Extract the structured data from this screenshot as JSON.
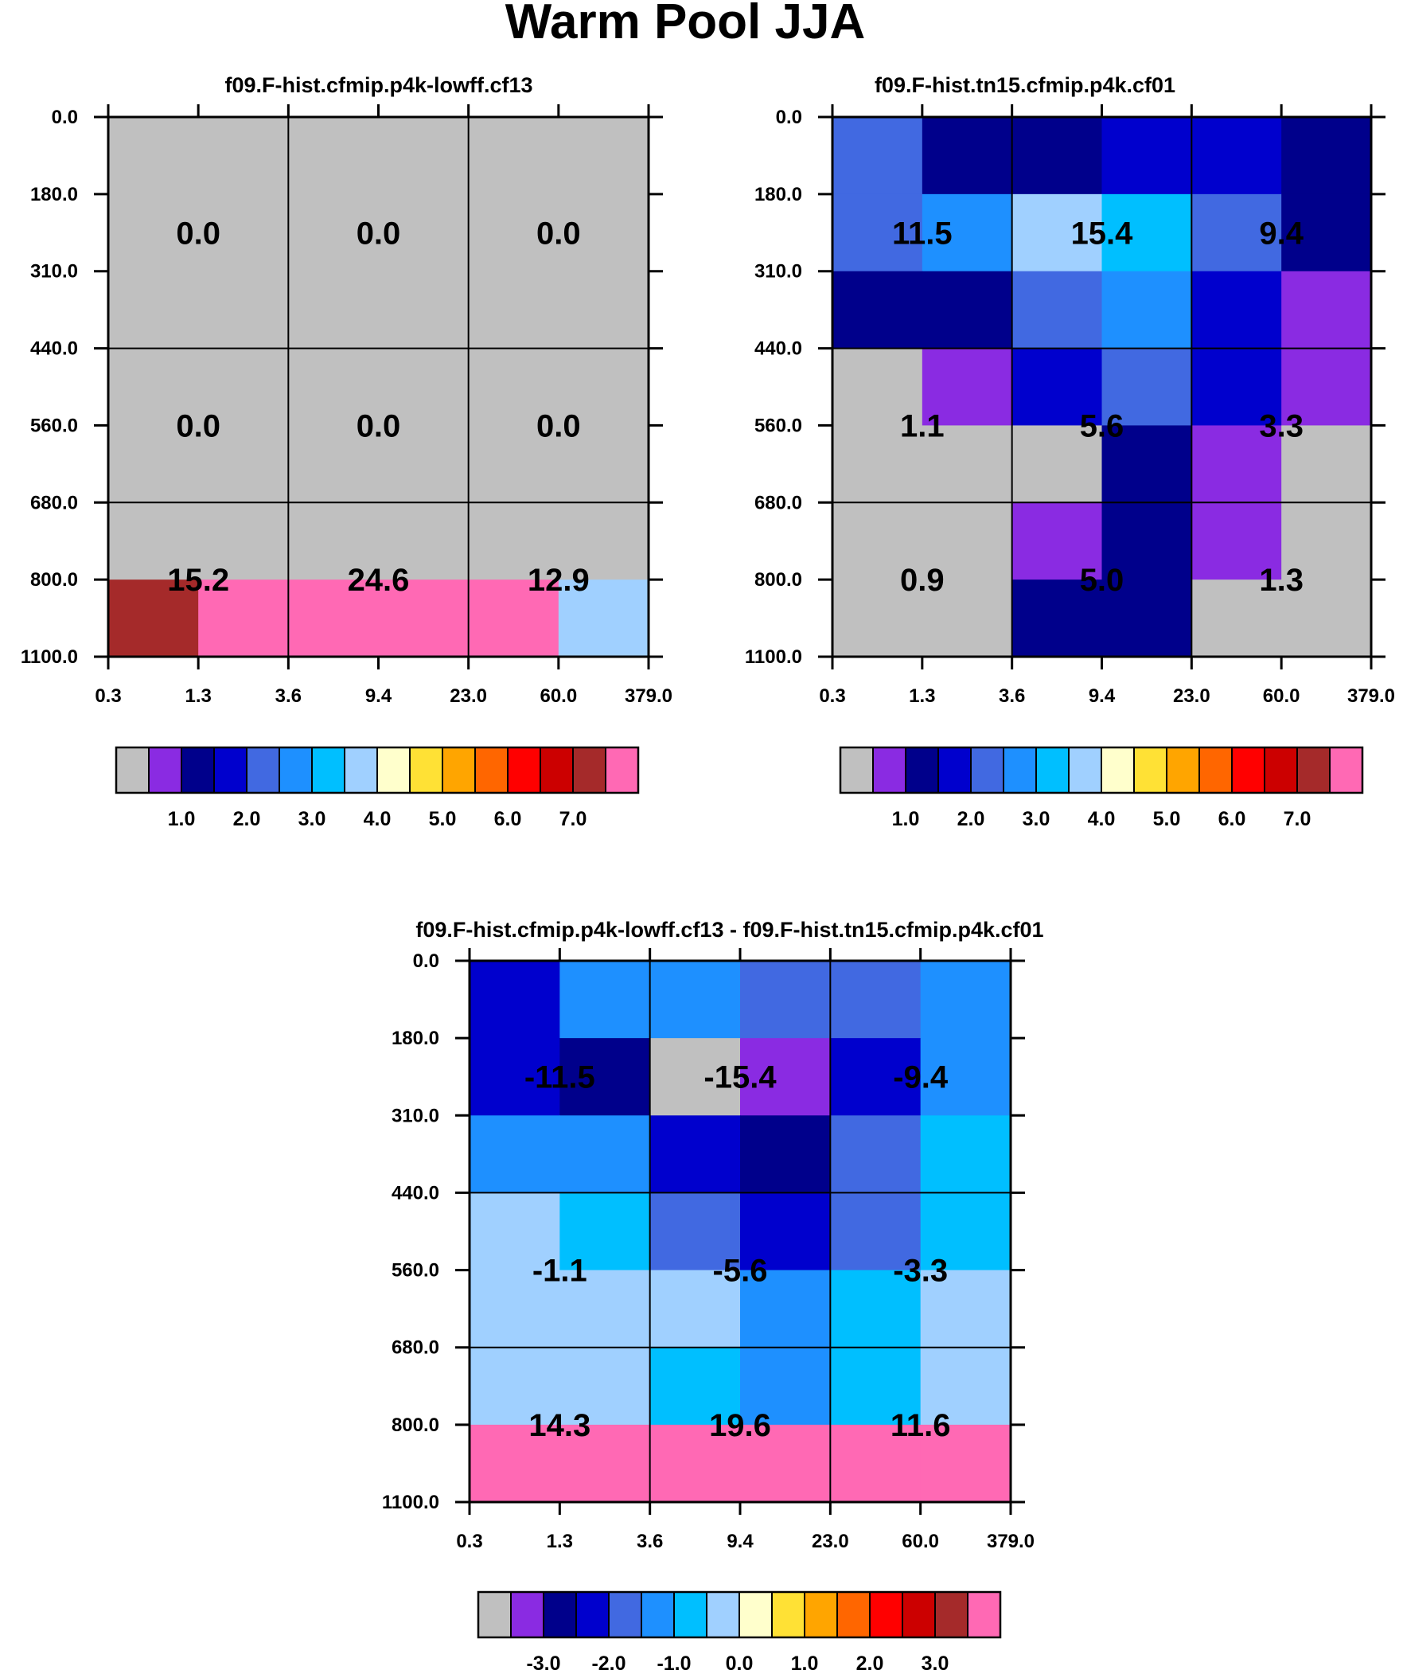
{
  "figure": {
    "title": "Warm Pool JJA"
  },
  "colors": {
    "palette": [
      "#c0c0c0",
      "#8a2be2",
      "#00008b",
      "#0000cd",
      "#4169e1",
      "#1e90ff",
      "#00bfff",
      "#a0d0ff",
      "#ffffcc",
      "#ffe135",
      "#ffa500",
      "#ff6600",
      "#ff0000",
      "#cc0000",
      "#a52a2a",
      "#ff69b4"
    ],
    "grid_line": "#000000"
  },
  "chart_data": [
    {
      "type": "heatmap",
      "title": "f09.F-hist.cfmip.p4k-lowff.cf13",
      "x_ticks": [
        "0.3",
        "1.3",
        "3.6",
        "9.4",
        "23.0",
        "60.0",
        "379.0"
      ],
      "y_ticks": [
        "0.0",
        "180.0",
        "310.0",
        "440.0",
        "560.0",
        "680.0",
        "800.0",
        "1100.0"
      ],
      "cells": [
        [
          0,
          0,
          0,
          0,
          0,
          0
        ],
        [
          0,
          0,
          0,
          0,
          0,
          0
        ],
        [
          0,
          0,
          0,
          0,
          0,
          0
        ],
        [
          0,
          0,
          0,
          0,
          0,
          0
        ],
        [
          0,
          0,
          0,
          0,
          0,
          0
        ],
        [
          0,
          0,
          0,
          0,
          0,
          0
        ],
        [
          14,
          15,
          15,
          15,
          15,
          7
        ]
      ],
      "labels": [
        [
          "0.0",
          "0.0",
          "0.0"
        ],
        [
          "0.0",
          "0.0",
          "0.0"
        ],
        [
          "15.2",
          "24.6",
          "12.9"
        ]
      ],
      "colorbar": {
        "ticks": [
          "1.0",
          "2.0",
          "3.0",
          "4.0",
          "5.0",
          "6.0",
          "7.0"
        ]
      }
    },
    {
      "type": "heatmap",
      "title": "f09.F-hist.tn15.cfmip.p4k.cf01",
      "x_ticks": [
        "0.3",
        "1.3",
        "3.6",
        "9.4",
        "23.0",
        "60.0",
        "379.0"
      ],
      "y_ticks": [
        "0.0",
        "180.0",
        "310.0",
        "440.0",
        "560.0",
        "680.0",
        "800.0",
        "1100.0"
      ],
      "cells": [
        [
          4,
          2,
          2,
          3,
          3,
          2
        ],
        [
          4,
          5,
          7,
          6,
          4,
          2
        ],
        [
          2,
          2,
          4,
          5,
          3,
          1
        ],
        [
          0,
          1,
          3,
          4,
          3,
          1
        ],
        [
          0,
          0,
          0,
          2,
          1,
          0
        ],
        [
          0,
          0,
          1,
          2,
          1,
          0
        ],
        [
          0,
          0,
          2,
          2,
          0,
          0
        ]
      ],
      "labels": [
        [
          "11.5",
          "15.4",
          "9.4"
        ],
        [
          "1.1",
          "5.6",
          "3.3"
        ],
        [
          "0.9",
          "5.0",
          "1.3"
        ]
      ],
      "colorbar": {
        "ticks": [
          "1.0",
          "2.0",
          "3.0",
          "4.0",
          "5.0",
          "6.0",
          "7.0"
        ]
      }
    },
    {
      "type": "heatmap",
      "title": "f09.F-hist.cfmip.p4k-lowff.cf13 - f09.F-hist.tn15.cfmip.p4k.cf01",
      "x_ticks": [
        "0.3",
        "1.3",
        "3.6",
        "9.4",
        "23.0",
        "60.0",
        "379.0"
      ],
      "y_ticks": [
        "0.0",
        "180.0",
        "310.0",
        "440.0",
        "560.0",
        "680.0",
        "800.0",
        "1100.0"
      ],
      "cells": [
        [
          3,
          5,
          5,
          4,
          4,
          5
        ],
        [
          3,
          2,
          0,
          1,
          3,
          5
        ],
        [
          5,
          5,
          3,
          2,
          4,
          6
        ],
        [
          7,
          6,
          4,
          3,
          4,
          6
        ],
        [
          7,
          7,
          7,
          5,
          6,
          7
        ],
        [
          7,
          7,
          6,
          5,
          6,
          7
        ],
        [
          15,
          15,
          15,
          15,
          15,
          15
        ]
      ],
      "labels": [
        [
          "-11.5",
          "-15.4",
          "-9.4"
        ],
        [
          "-1.1",
          "-5.6",
          "-3.3"
        ],
        [
          "14.3",
          "19.6",
          "11.6"
        ]
      ],
      "colorbar": {
        "ticks": [
          "-3.0",
          "-2.0",
          "-1.0",
          "0.0",
          "1.0",
          "2.0",
          "3.0"
        ]
      }
    }
  ]
}
